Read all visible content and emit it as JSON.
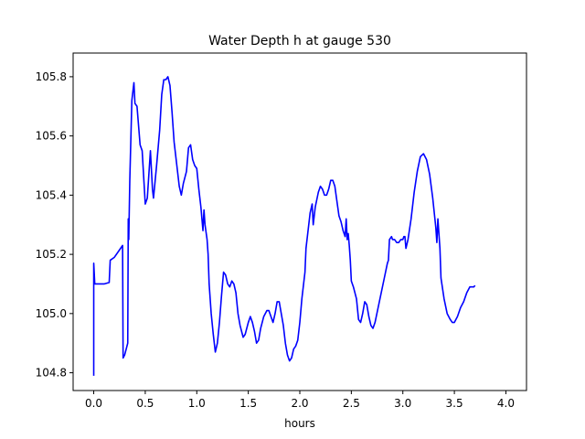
{
  "chart_data": {
    "type": "line",
    "title": "Water Depth h at gauge 530",
    "xlabel": "hours",
    "ylabel": "",
    "xlim": [
      -0.2,
      4.2
    ],
    "ylim": [
      104.74,
      105.88
    ],
    "xticks": [
      0.0,
      0.5,
      1.0,
      1.5,
      2.0,
      2.5,
      3.0,
      3.5,
      4.0
    ],
    "xtick_labels": [
      "0.0",
      "0.5",
      "1.0",
      "1.5",
      "2.0",
      "2.5",
      "3.0",
      "3.5",
      "4.0"
    ],
    "yticks": [
      104.8,
      105.0,
      105.2,
      105.4,
      105.6,
      105.8
    ],
    "ytick_labels": [
      "104.8",
      "105.0",
      "105.2",
      "105.4",
      "105.6",
      "105.8"
    ],
    "grid": false,
    "legend": "none",
    "series": [
      {
        "color": "#0000ff",
        "points": [
          [
            0.0,
            104.79
          ],
          [
            0.0,
            105.17
          ],
          [
            0.01,
            105.1
          ],
          [
            0.05,
            105.1
          ],
          [
            0.1,
            105.1
          ],
          [
            0.15,
            105.105
          ],
          [
            0.16,
            105.18
          ],
          [
            0.2,
            105.19
          ],
          [
            0.24,
            105.21
          ],
          [
            0.28,
            105.23
          ],
          [
            0.285,
            104.85
          ],
          [
            0.3,
            104.86
          ],
          [
            0.33,
            104.9
          ],
          [
            0.335,
            105.32
          ],
          [
            0.34,
            105.25
          ],
          [
            0.35,
            105.45
          ],
          [
            0.37,
            105.72
          ],
          [
            0.39,
            105.78
          ],
          [
            0.4,
            105.71
          ],
          [
            0.42,
            105.7
          ],
          [
            0.45,
            105.57
          ],
          [
            0.47,
            105.55
          ],
          [
            0.5,
            105.37
          ],
          [
            0.52,
            105.39
          ],
          [
            0.55,
            105.55
          ],
          [
            0.57,
            105.42
          ],
          [
            0.58,
            105.39
          ],
          [
            0.61,
            105.5
          ],
          [
            0.64,
            105.62
          ],
          [
            0.66,
            105.74
          ],
          [
            0.68,
            105.79
          ],
          [
            0.7,
            105.79
          ],
          [
            0.72,
            105.8
          ],
          [
            0.74,
            105.77
          ],
          [
            0.76,
            105.68
          ],
          [
            0.78,
            105.58
          ],
          [
            0.8,
            105.52
          ],
          [
            0.83,
            105.43
          ],
          [
            0.85,
            105.4
          ],
          [
            0.87,
            105.44
          ],
          [
            0.9,
            105.48
          ],
          [
            0.92,
            105.56
          ],
          [
            0.94,
            105.57
          ],
          [
            0.96,
            105.52
          ],
          [
            0.98,
            105.5
          ],
          [
            1.0,
            105.49
          ],
          [
            1.02,
            105.42
          ],
          [
            1.04,
            105.36
          ],
          [
            1.06,
            105.28
          ],
          [
            1.07,
            105.35
          ],
          [
            1.08,
            105.3
          ],
          [
            1.1,
            105.25
          ],
          [
            1.11,
            105.2
          ],
          [
            1.12,
            105.1
          ],
          [
            1.14,
            105.0
          ],
          [
            1.16,
            104.93
          ],
          [
            1.18,
            104.87
          ],
          [
            1.2,
            104.9
          ],
          [
            1.22,
            104.97
          ],
          [
            1.24,
            105.06
          ],
          [
            1.26,
            105.14
          ],
          [
            1.28,
            105.13
          ],
          [
            1.3,
            105.1
          ],
          [
            1.32,
            105.09
          ],
          [
            1.34,
            105.11
          ],
          [
            1.36,
            105.1
          ],
          [
            1.38,
            105.07
          ],
          [
            1.4,
            105.0
          ],
          [
            1.42,
            104.96
          ],
          [
            1.45,
            104.92
          ],
          [
            1.47,
            104.93
          ],
          [
            1.5,
            104.97
          ],
          [
            1.52,
            104.99
          ],
          [
            1.54,
            104.97
          ],
          [
            1.56,
            104.94
          ],
          [
            1.58,
            104.9
          ],
          [
            1.6,
            104.91
          ],
          [
            1.62,
            104.95
          ],
          [
            1.65,
            104.99
          ],
          [
            1.68,
            105.01
          ],
          [
            1.7,
            105.01
          ],
          [
            1.72,
            104.99
          ],
          [
            1.74,
            104.97
          ],
          [
            1.76,
            105.0
          ],
          [
            1.78,
            105.04
          ],
          [
            1.8,
            105.04
          ],
          [
            1.82,
            105.0
          ],
          [
            1.84,
            104.96
          ],
          [
            1.86,
            104.9
          ],
          [
            1.88,
            104.86
          ],
          [
            1.9,
            104.84
          ],
          [
            1.92,
            104.85
          ],
          [
            1.94,
            104.88
          ],
          [
            1.96,
            104.89
          ],
          [
            1.98,
            104.91
          ],
          [
            2.0,
            104.97
          ],
          [
            2.02,
            105.05
          ],
          [
            2.05,
            105.14
          ],
          [
            2.06,
            105.22
          ],
          [
            2.08,
            105.28
          ],
          [
            2.1,
            105.34
          ],
          [
            2.12,
            105.37
          ],
          [
            2.13,
            105.3
          ],
          [
            2.15,
            105.36
          ],
          [
            2.18,
            105.41
          ],
          [
            2.2,
            105.43
          ],
          [
            2.22,
            105.42
          ],
          [
            2.24,
            105.4
          ],
          [
            2.26,
            105.4
          ],
          [
            2.28,
            105.42
          ],
          [
            2.3,
            105.45
          ],
          [
            2.32,
            105.45
          ],
          [
            2.34,
            105.43
          ],
          [
            2.36,
            105.38
          ],
          [
            2.38,
            105.33
          ],
          [
            2.4,
            105.31
          ],
          [
            2.42,
            105.28
          ],
          [
            2.44,
            105.26
          ],
          [
            2.45,
            105.32
          ],
          [
            2.46,
            105.25
          ],
          [
            2.47,
            105.27
          ],
          [
            2.48,
            105.23
          ],
          [
            2.49,
            105.18
          ],
          [
            2.5,
            105.11
          ],
          [
            2.52,
            105.09
          ],
          [
            2.55,
            105.05
          ],
          [
            2.57,
            104.98
          ],
          [
            2.59,
            104.97
          ],
          [
            2.61,
            105.0
          ],
          [
            2.63,
            105.04
          ],
          [
            2.65,
            105.03
          ],
          [
            2.67,
            104.99
          ],
          [
            2.69,
            104.96
          ],
          [
            2.71,
            104.95
          ],
          [
            2.73,
            104.97
          ],
          [
            2.76,
            105.02
          ],
          [
            2.79,
            105.07
          ],
          [
            2.82,
            105.12
          ],
          [
            2.85,
            105.17
          ],
          [
            2.86,
            105.18
          ],
          [
            2.87,
            105.25
          ],
          [
            2.89,
            105.26
          ],
          [
            2.9,
            105.25
          ],
          [
            2.92,
            105.25
          ],
          [
            2.94,
            105.24
          ],
          [
            2.96,
            105.24
          ],
          [
            2.98,
            105.25
          ],
          [
            3.0,
            105.25
          ],
          [
            3.01,
            105.26
          ],
          [
            3.02,
            105.26
          ],
          [
            3.03,
            105.22
          ],
          [
            3.05,
            105.25
          ],
          [
            3.08,
            105.32
          ],
          [
            3.11,
            105.41
          ],
          [
            3.14,
            105.48
          ],
          [
            3.17,
            105.53
          ],
          [
            3.2,
            105.54
          ],
          [
            3.23,
            105.52
          ],
          [
            3.26,
            105.47
          ],
          [
            3.29,
            105.39
          ],
          [
            3.32,
            105.29
          ],
          [
            3.33,
            105.24
          ],
          [
            3.34,
            105.32
          ],
          [
            3.35,
            105.27
          ],
          [
            3.36,
            105.22
          ],
          [
            3.37,
            105.12
          ],
          [
            3.4,
            105.05
          ],
          [
            3.43,
            105.0
          ],
          [
            3.46,
            104.98
          ],
          [
            3.48,
            104.97
          ],
          [
            3.5,
            104.97
          ],
          [
            3.53,
            104.99
          ],
          [
            3.56,
            105.02
          ],
          [
            3.59,
            105.04
          ],
          [
            3.62,
            105.07
          ],
          [
            3.65,
            105.09
          ],
          [
            3.67,
            105.09
          ],
          [
            3.69,
            105.09
          ],
          [
            3.7,
            105.095
          ]
        ]
      }
    ]
  }
}
